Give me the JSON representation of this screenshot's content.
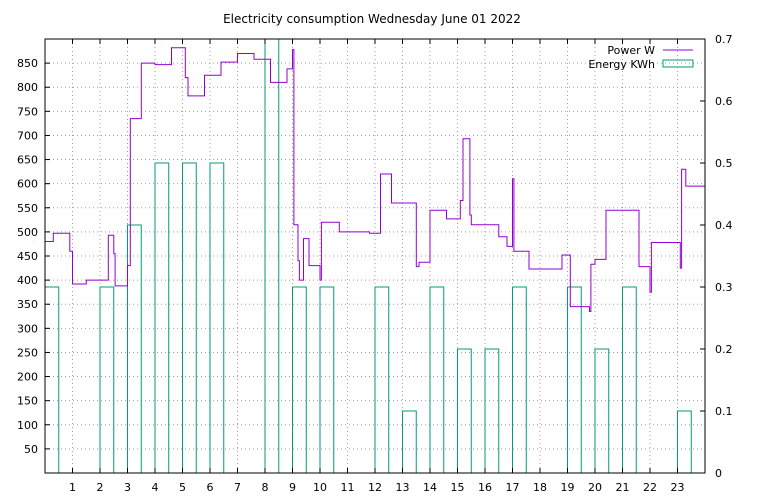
{
  "chart_data": {
    "type": "line",
    "title": "Electricity consumption Wednesday June 01 2022",
    "xlabel": "",
    "ylabel": "",
    "y2label": "",
    "xlim": [
      0,
      24
    ],
    "ylim": [
      0,
      900
    ],
    "y2lim": [
      0,
      0.7
    ],
    "grid": true,
    "legend_position": "top-right",
    "x_ticks": [
      "1",
      "2",
      "3",
      "4",
      "5",
      "6",
      "7",
      "8",
      "9",
      "10",
      "11",
      "12",
      "13",
      "14",
      "15",
      "16",
      "17",
      "18",
      "19",
      "20",
      "21",
      "22",
      "23"
    ],
    "y_ticks": [
      "50",
      "100",
      "150",
      "200",
      "250",
      "300",
      "350",
      "400",
      "450",
      "500",
      "550",
      "600",
      "650",
      "700",
      "750",
      "800",
      "850"
    ],
    "y2_ticks": [
      "0",
      "0.1",
      "0.2",
      "0.3",
      "0.4",
      "0.5",
      "0.6",
      "0.7"
    ],
    "colors": {
      "power": "#9400d3",
      "energy": "#009e73",
      "grid": "#a0a0a0"
    },
    "series": [
      {
        "name": "Power W",
        "type": "step-line",
        "axis": "y1",
        "points": [
          [
            0.0,
            480
          ],
          [
            0.3,
            480
          ],
          [
            0.3,
            497
          ],
          [
            0.9,
            497
          ],
          [
            0.9,
            460
          ],
          [
            1.0,
            460
          ],
          [
            1.0,
            392
          ],
          [
            1.5,
            392
          ],
          [
            1.5,
            400
          ],
          [
            2.3,
            400
          ],
          [
            2.3,
            493
          ],
          [
            2.5,
            493
          ],
          [
            2.5,
            455
          ],
          [
            2.55,
            455
          ],
          [
            2.55,
            388
          ],
          [
            3.0,
            388
          ],
          [
            3.0,
            430
          ],
          [
            3.1,
            430
          ],
          [
            3.1,
            735
          ],
          [
            3.5,
            735
          ],
          [
            3.5,
            850
          ],
          [
            4.0,
            850
          ],
          [
            4.0,
            847
          ],
          [
            4.6,
            847
          ],
          [
            4.6,
            882
          ],
          [
            5.1,
            882
          ],
          [
            5.1,
            820
          ],
          [
            5.2,
            820
          ],
          [
            5.2,
            782
          ],
          [
            5.8,
            782
          ],
          [
            5.8,
            825
          ],
          [
            6.4,
            825
          ],
          [
            6.4,
            852
          ],
          [
            7.0,
            852
          ],
          [
            7.0,
            870
          ],
          [
            7.6,
            870
          ],
          [
            7.6,
            858
          ],
          [
            8.2,
            858
          ],
          [
            8.2,
            810
          ],
          [
            8.8,
            810
          ],
          [
            8.8,
            838
          ],
          [
            9.0,
            838
          ],
          [
            9.0,
            878
          ],
          [
            9.05,
            878
          ],
          [
            9.05,
            515
          ],
          [
            9.2,
            515
          ],
          [
            9.2,
            440
          ],
          [
            9.25,
            440
          ],
          [
            9.25,
            400
          ],
          [
            9.4,
            400
          ],
          [
            9.4,
            486
          ],
          [
            9.6,
            486
          ],
          [
            9.6,
            430
          ],
          [
            10.0,
            430
          ],
          [
            10.0,
            400
          ],
          [
            10.05,
            400
          ],
          [
            10.05,
            520
          ],
          [
            10.7,
            520
          ],
          [
            10.7,
            500
          ],
          [
            11.8,
            500
          ],
          [
            11.8,
            497
          ],
          [
            12.2,
            497
          ],
          [
            12.2,
            620
          ],
          [
            12.6,
            620
          ],
          [
            12.6,
            560
          ],
          [
            13.5,
            560
          ],
          [
            13.5,
            428
          ],
          [
            13.6,
            428
          ],
          [
            13.6,
            437
          ],
          [
            14.0,
            437
          ],
          [
            14.0,
            545
          ],
          [
            14.6,
            545
          ],
          [
            14.6,
            527
          ],
          [
            15.1,
            527
          ],
          [
            15.1,
            565
          ],
          [
            15.2,
            565
          ],
          [
            15.2,
            693
          ],
          [
            15.45,
            693
          ],
          [
            15.45,
            535
          ],
          [
            15.5,
            535
          ],
          [
            15.5,
            515
          ],
          [
            16.5,
            515
          ],
          [
            16.5,
            490
          ],
          [
            16.8,
            490
          ],
          [
            16.8,
            470
          ],
          [
            17.0,
            470
          ],
          [
            17.0,
            610
          ],
          [
            17.05,
            610
          ],
          [
            17.05,
            460
          ],
          [
            17.6,
            460
          ],
          [
            17.6,
            423
          ],
          [
            18.8,
            423
          ],
          [
            18.8,
            452
          ],
          [
            19.1,
            452
          ],
          [
            19.1,
            345
          ],
          [
            19.8,
            345
          ],
          [
            19.8,
            335
          ],
          [
            19.85,
            335
          ],
          [
            19.85,
            433
          ],
          [
            20.0,
            433
          ],
          [
            20.0,
            443
          ],
          [
            20.4,
            443
          ],
          [
            20.4,
            545
          ],
          [
            21.6,
            545
          ],
          [
            21.6,
            428
          ],
          [
            22.0,
            428
          ],
          [
            22.0,
            375
          ],
          [
            22.05,
            375
          ],
          [
            22.05,
            478
          ],
          [
            23.1,
            478
          ],
          [
            23.1,
            425
          ],
          [
            23.15,
            425
          ],
          [
            23.15,
            630
          ],
          [
            23.3,
            630
          ],
          [
            23.3,
            595
          ],
          [
            24.0,
            595
          ]
        ]
      },
      {
        "name": "Energy KWh",
        "type": "bar",
        "axis": "y2",
        "x": [
          0,
          1,
          2,
          3,
          4,
          5,
          6,
          7,
          8,
          9,
          10,
          11,
          12,
          13,
          14,
          15,
          16,
          17,
          18,
          19,
          20,
          21,
          22,
          23
        ],
        "values": [
          0.3,
          0.0,
          0.3,
          0.4,
          0.5,
          0.5,
          0.5,
          0.0,
          0.7,
          0.3,
          0.3,
          0.0,
          0.3,
          0.1,
          0.3,
          0.2,
          0.2,
          0.3,
          0.0,
          0.3,
          0.2,
          0.3,
          0.0,
          0.1
        ]
      }
    ]
  }
}
